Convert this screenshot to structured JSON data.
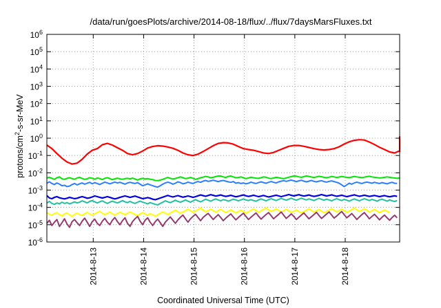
{
  "chart_data": {
    "type": "line",
    "title": "/data/run/goesPlots/archive/2014-08-18/flux/../flux/7daysMarsFluxes.txt",
    "xlabel": "Coordinated Universal Time (UTC)",
    "ylabel": {
      "prefix": "protons/cm",
      "sup": "2",
      "suffix": "-s-sr-MeV"
    },
    "yscale": "log",
    "ylim": [
      1e-06,
      1000000.0
    ],
    "xlim": [
      0,
      7
    ],
    "grid": "dotted",
    "legend": "none",
    "y_ticks": [
      {
        "value": -6,
        "base": "10",
        "exp": "-6"
      },
      {
        "value": -5,
        "base": "10",
        "exp": "-5"
      },
      {
        "value": -4,
        "base": "10",
        "exp": "-4"
      },
      {
        "value": -3,
        "base": "10",
        "exp": "-3"
      },
      {
        "value": -2,
        "base": "10",
        "exp": "-2"
      },
      {
        "value": -1,
        "base": "10",
        "exp": "-1"
      },
      {
        "value": 0,
        "base": "10",
        "exp": "0"
      },
      {
        "value": 1,
        "base": "10",
        "exp": "1"
      },
      {
        "value": 2,
        "base": "10",
        "exp": "2"
      },
      {
        "value": 3,
        "base": "10",
        "exp": "3"
      },
      {
        "value": 4,
        "base": "10",
        "exp": "4"
      },
      {
        "value": 5,
        "base": "10",
        "exp": "5"
      },
      {
        "value": 6,
        "base": "10",
        "exp": "6"
      }
    ],
    "x_ticks": [
      {
        "value": 0.92,
        "label": "2014-8-13"
      },
      {
        "value": 1.92,
        "label": "2014-8-14"
      },
      {
        "value": 2.92,
        "label": "2014-8-15"
      },
      {
        "value": 3.92,
        "label": "2014-8-16"
      },
      {
        "value": 4.92,
        "label": "2014-8-17"
      },
      {
        "value": 5.92,
        "label": "2014-8-18"
      }
    ],
    "series": [
      {
        "color": "#ff0000",
        "width": 2.2,
        "x_step": 0.1,
        "values": [
          0.4,
          0.25,
          0.13,
          0.07,
          0.042,
          0.032,
          0.036,
          0.06,
          0.12,
          0.2,
          0.25,
          0.42,
          0.5,
          0.4,
          0.28,
          0.2,
          0.13,
          0.11,
          0.13,
          0.18,
          0.27,
          0.33,
          0.37,
          0.35,
          0.31,
          0.26,
          0.2,
          0.14,
          0.11,
          0.1,
          0.12,
          0.17,
          0.25,
          0.37,
          0.5,
          0.55,
          0.53,
          0.45,
          0.33,
          0.25,
          0.22,
          0.2,
          0.17,
          0.14,
          0.13,
          0.15,
          0.2,
          0.26,
          0.34,
          0.38,
          0.38,
          0.34,
          0.29,
          0.25,
          0.22,
          0.21,
          0.22,
          0.25,
          0.32,
          0.46,
          0.62,
          0.75,
          0.82,
          0.78,
          0.6,
          0.43,
          0.3,
          0.22,
          0.16,
          0.14,
          0.19,
          0.38,
          0.68,
          1.0,
          1.2,
          1.15,
          0.95,
          0.7,
          0.45,
          0.28,
          0.19,
          0.17,
          0.23,
          0.35,
          0.5,
          0.65,
          0.8,
          0.95,
          0.85
        ]
      },
      {
        "color": "#00e700",
        "width": 2.0,
        "x_step": 0.05,
        "values": [
          0.005,
          0.0055,
          0.0048,
          0.0042,
          0.0052,
          0.0058,
          0.0045,
          0.0042,
          0.0048,
          0.0052,
          0.0046,
          0.0043,
          0.005,
          0.0055,
          0.0047,
          0.0042,
          0.0045,
          0.0052,
          0.0048,
          0.0043,
          0.005,
          0.0046,
          0.0041,
          0.0048,
          0.0052,
          0.0046,
          0.004,
          0.0045,
          0.0049,
          0.0044,
          0.0042,
          0.0046,
          0.0048,
          0.0045,
          0.0049,
          0.0044,
          0.0038,
          0.0045,
          0.0048,
          0.0044,
          0.0046,
          0.0043,
          0.004,
          0.0036,
          0.0035,
          0.0038,
          0.0042,
          0.0048,
          0.0054,
          0.0048,
          0.0044,
          0.0047,
          0.0052,
          0.0058,
          0.0052,
          0.0046,
          0.0049,
          0.0054,
          0.0048,
          0.0042,
          0.0046,
          0.0052,
          0.0056,
          0.0062,
          0.0058,
          0.0052,
          0.0055,
          0.006,
          0.0066,
          0.0065,
          0.0058,
          0.0054,
          0.0062,
          0.0066,
          0.0058,
          0.0052,
          0.0054,
          0.0058,
          0.0052,
          0.0046,
          0.005,
          0.0056,
          0.0052,
          0.0049,
          0.0048,
          0.0052,
          0.0058,
          0.0055,
          0.0049,
          0.0046,
          0.005,
          0.0055,
          0.0052,
          0.0048,
          0.0046,
          0.005,
          0.0056,
          0.006,
          0.0066,
          0.0064,
          0.0058,
          0.0055,
          0.006,
          0.0066,
          0.0062,
          0.0057,
          0.0054,
          0.0058,
          0.0063,
          0.0059,
          0.0055,
          0.0052,
          0.0056,
          0.0062,
          0.0058,
          0.0054,
          0.0057,
          0.0062,
          0.0058,
          0.0055,
          0.0053,
          0.0057,
          0.0062,
          0.0058,
          0.0055,
          0.0053,
          0.0056,
          0.006,
          0.0063,
          0.0058,
          0.0055,
          0.0053,
          0.005,
          0.0052,
          0.0055,
          0.0058,
          0.0055,
          0.0052,
          0.005,
          0.0048,
          0.005
        ]
      },
      {
        "color": "#2a7fff",
        "width": 2.0,
        "x_step": 0.05,
        "values": [
          0.0025,
          0.003,
          0.0024,
          0.0021,
          0.0026,
          0.0022,
          0.0018,
          0.0019,
          0.0016,
          0.0017,
          0.0021,
          0.0024,
          0.002,
          0.0023,
          0.0026,
          0.0022,
          0.0025,
          0.0028,
          0.0023,
          0.0027,
          0.0024,
          0.0021,
          0.0025,
          0.0029,
          0.0026,
          0.0023,
          0.0026,
          0.0029,
          0.0026,
          0.0028,
          0.0025,
          0.0022,
          0.0026,
          0.0028,
          0.0026,
          0.0024,
          0.0027,
          0.0022,
          0.0018,
          0.002,
          0.0023,
          0.002,
          0.0018,
          0.0016,
          0.0015,
          0.0018,
          0.0022,
          0.0026,
          0.0029,
          0.0026,
          0.0022,
          0.0025,
          0.003,
          0.0027,
          0.0023,
          0.0025,
          0.0029,
          0.0026,
          0.0024,
          0.0028,
          0.0031,
          0.0028,
          0.0033,
          0.0036,
          0.0032,
          0.0034,
          0.0037,
          0.0034,
          0.0031,
          0.0034,
          0.0036,
          0.0033,
          0.003,
          0.0028,
          0.0031,
          0.0025,
          0.0027,
          0.0024,
          0.0026,
          0.0023,
          0.0025,
          0.0029,
          0.0026,
          0.0024,
          0.0027,
          0.003,
          0.0027,
          0.0025,
          0.0028,
          0.0031,
          0.0028,
          0.0026,
          0.003,
          0.0033,
          0.0035,
          0.0032,
          0.0035,
          0.0038,
          0.0034,
          0.0031,
          0.0034,
          0.0037,
          0.0033,
          0.003,
          0.0033,
          0.0036,
          0.0032,
          0.003,
          0.0033,
          0.0035,
          0.0031,
          0.0029,
          0.0032,
          0.0034,
          0.0031,
          0.0028,
          0.0025,
          0.002,
          0.0016,
          0.002,
          0.0025,
          0.0022,
          0.0026,
          0.0029,
          0.0026,
          0.0024,
          0.0027,
          0.0029,
          0.0027,
          0.0025,
          0.0028,
          0.0026,
          0.0024,
          0.0027,
          0.0025,
          0.0023,
          0.0026,
          0.0028,
          0.0025,
          0.0024
        ]
      },
      {
        "color": "#0000e0",
        "width": 2.2,
        "x_step": 0.05,
        "values": [
          0.00048,
          0.00035,
          0.00032,
          0.00038,
          0.00042,
          0.00036,
          0.00033,
          0.00031,
          0.00034,
          0.00038,
          0.00035,
          0.00032,
          0.00034,
          0.00038,
          0.00042,
          0.00038,
          0.00034,
          0.00036,
          0.0004,
          0.00046,
          0.00042,
          0.00038,
          0.00035,
          0.00038,
          0.00042,
          0.00038,
          0.00034,
          0.00031,
          0.00034,
          0.00038,
          0.00042,
          0.00046,
          0.00042,
          0.00038,
          0.00041,
          0.00045,
          0.0004,
          0.00036,
          0.00032,
          0.00034,
          0.00037,
          0.00034,
          0.0003,
          0.00028,
          0.00031,
          0.00035,
          0.00039,
          0.00044,
          0.00049,
          0.00044,
          0.0004,
          0.00044,
          0.00048,
          0.00043,
          0.00039,
          0.00042,
          0.00046,
          0.00042,
          0.00038,
          0.00042,
          0.00047,
          0.00052,
          0.00048,
          0.00044,
          0.00049,
          0.00054,
          0.0005,
          0.00045,
          0.00048,
          0.00052,
          0.00047,
          0.00043,
          0.00046,
          0.0005,
          0.00045,
          0.00041,
          0.00044,
          0.00048,
          0.00052,
          0.00047,
          0.00043,
          0.00046,
          0.00051,
          0.00046,
          0.00042,
          0.00045,
          0.00049,
          0.00044,
          0.0004,
          0.00043,
          0.00047,
          0.00051,
          0.00046,
          0.00042,
          0.00046,
          0.0005,
          0.00055,
          0.0005,
          0.00046,
          0.0005,
          0.00054,
          0.00049,
          0.00045,
          0.00048,
          0.00052,
          0.00047,
          0.00043,
          0.00046,
          0.0005,
          0.00055,
          0.0005,
          0.00046,
          0.00049,
          0.00053,
          0.00048,
          0.00044,
          0.00047,
          0.00051,
          0.00046,
          0.00042,
          0.00045,
          0.00049,
          0.00053,
          0.00048,
          0.00044,
          0.00047,
          0.00051,
          0.00047,
          0.00043,
          0.00046,
          0.00049,
          0.00045,
          0.00042,
          0.00045,
          0.00048,
          0.00044,
          0.00041,
          0.00044,
          0.00047,
          0.00043
        ]
      },
      {
        "color": "#20c0a0",
        "width": 2.0,
        "x_step": 0.05,
        "values": [
          0.00018,
          0.00022,
          0.00017,
          0.00015,
          0.00018,
          0.00016,
          0.0002,
          0.00017,
          0.00019,
          0.00016,
          0.00018,
          0.00021,
          0.00018,
          0.0002,
          0.00024,
          0.00021,
          0.00018,
          0.00022,
          0.00025,
          0.00021,
          0.00018,
          0.00021,
          0.00024,
          0.0002,
          0.00017,
          0.0002,
          0.00023,
          0.0002,
          0.00018,
          0.00021,
          0.00025,
          0.00021,
          0.00019,
          0.00022,
          0.00019,
          0.00017,
          0.0002,
          0.00023,
          0.0002,
          0.00018,
          0.00016,
          0.00019,
          0.00017,
          0.00015,
          0.00014,
          0.00017,
          0.0002,
          0.00024,
          0.00021,
          0.00019,
          0.00022,
          0.00026,
          0.00022,
          0.0002,
          0.00023,
          0.00027,
          0.00023,
          0.0002,
          0.00024,
          0.00028,
          0.00024,
          0.00021,
          0.00025,
          0.0003,
          0.00026,
          0.00023,
          0.00027,
          0.00031,
          0.00027,
          0.00024,
          0.00028,
          0.00026,
          0.00023,
          0.00026,
          0.0003,
          0.00027,
          0.00024,
          0.00027,
          0.00031,
          0.00027,
          0.00025,
          0.00028,
          0.00025,
          0.00023,
          0.00027,
          0.00031,
          0.00027,
          0.00024,
          0.00028,
          0.00032,
          0.00028,
          0.00025,
          0.00029,
          0.00033,
          0.00029,
          0.00026,
          0.0003,
          0.00034,
          0.00029,
          0.00026,
          0.0003,
          0.00034,
          0.0003,
          0.00027,
          0.00031,
          0.00028,
          0.00025,
          0.00029,
          0.00033,
          0.00029,
          0.00026,
          0.0003,
          0.00027,
          0.00024,
          0.00028,
          0.00032,
          0.00028,
          0.00025,
          0.00029,
          0.00026,
          0.00023,
          0.00027,
          0.00031,
          0.00027,
          0.00024,
          0.00028,
          0.00032,
          0.00028,
          0.00025,
          0.00029,
          0.00026,
          0.00023,
          0.00027,
          0.0003,
          0.00026,
          0.00023,
          0.00027,
          0.00024,
          0.00022,
          0.00025
        ]
      },
      {
        "color": "#ffff00",
        "width": 2.0,
        "x_step": 0.05,
        "values": [
          5e-05,
          4e-05,
          3.5e-05,
          4.5e-05,
          5e-05,
          3.8e-05,
          3.2e-05,
          4.2e-05,
          4.8e-05,
          3.6e-05,
          3e-05,
          4e-05,
          4.6e-05,
          3.9e-05,
          3.4e-05,
          4.4e-05,
          5.2e-05,
          4.1e-05,
          3.5e-05,
          4.3e-05,
          5e-05,
          6e-05,
          4.6e-05,
          3.8e-05,
          4.5e-05,
          5.4e-05,
          4.2e-05,
          3.6e-05,
          4.4e-05,
          5.2e-05,
          4.5e-05,
          3.8e-05,
          4.6e-05,
          5.5e-05,
          4.6e-05,
          3.9e-05,
          3.3e-05,
          4.2e-05,
          5e-05,
          4.1e-05,
          3.5e-05,
          4.4e-05,
          3.7e-05,
          3.1e-05,
          3.8e-05,
          4.6e-05,
          5.5e-05,
          4.6e-05,
          3.9e-05,
          4.8e-05,
          5.8e-05,
          7e-05,
          5.6e-05,
          4.6e-05,
          5.4e-05,
          6.5e-05,
          8e-05,
          6.4e-05,
          5.2e-05,
          6.2e-05,
          7.6e-05,
          9e-05,
          7e-05,
          5.6e-05,
          6.6e-05,
          8e-05,
          6.5e-05,
          5.3e-05,
          6.4e-05,
          7.8e-05,
          6.2e-05,
          5e-05,
          6e-05,
          7.3e-05,
          5.8e-05,
          4.8e-05,
          5.8e-05,
          7e-05,
          5.6e-05,
          4.6e-05,
          5.6e-05,
          6.8e-05,
          8.2e-05,
          6.5e-05,
          5.3e-05,
          6.4e-05,
          7.8e-05,
          9.2e-05,
          7.2e-05,
          5.8e-05,
          6.8e-05,
          8.2e-05,
          6.6e-05,
          5.4e-05,
          6.5e-05,
          7.8e-05,
          6.2e-05,
          5e-05,
          6e-05,
          7.2e-05,
          5.8e-05,
          4.8e-05,
          5.8e-05,
          7e-05,
          8.4e-05,
          6.6e-05,
          5.4e-05,
          6.4e-05,
          7.6e-05,
          6e-05,
          4.9e-05,
          5.8e-05,
          7e-05,
          8.5e-05,
          6.8e-05,
          5.5e-05,
          6.6e-05,
          8e-05,
          6.4e-05,
          5.2e-05,
          6.2e-05,
          7.5e-05,
          9e-05,
          7.2e-05,
          5.8e-05,
          7e-05,
          8.4e-05,
          6.7e-05,
          5.4e-05,
          6.4e-05,
          7.8e-05,
          6.2e-05,
          5e-05,
          6e-05,
          7.2e-05,
          6e-05,
          5e-05
        ]
      },
      {
        "color": "#943a6e",
        "width": 2.0,
        "x_step": 0.05,
        "values": [
          1.2e-05,
          1.8e-05,
          9e-06,
          1.4e-05,
          2e-05,
          8e-06,
          1.3e-05,
          2.2e-05,
          1.1e-05,
          7e-06,
          1.5e-05,
          2e-05,
          1.3e-05,
          9e-06,
          1.6e-05,
          2.4e-05,
          1.4e-05,
          8e-06,
          1.5e-05,
          2.1e-05,
          1.2e-05,
          9e-06,
          1.6e-05,
          2.3e-05,
          1.4e-05,
          1e-05,
          1.8e-05,
          2.6e-05,
          1.5e-05,
          1e-05,
          1.7e-05,
          2.5e-05,
          1.2e-05,
          8e-06,
          1.5e-05,
          2.2e-05,
          3e-05,
          1.6e-05,
          1e-05,
          1.8e-05,
          2.5e-05,
          1.4e-05,
          9e-06,
          1.5e-05,
          2.1e-05,
          1.3e-05,
          8e-06,
          1.4e-05,
          2e-05,
          2.8e-05,
          1.8e-05,
          1.2e-05,
          1.9e-05,
          2.7e-05,
          3.6e-05,
          2.2e-05,
          1.4e-05,
          2.2e-05,
          3e-05,
          4e-05,
          2.6e-05,
          1.7e-05,
          2.6e-05,
          3.5e-05,
          4.5e-05,
          3e-05,
          2e-05,
          2.8e-05,
          3.8e-05,
          2.6e-05,
          1.7e-05,
          2.4e-05,
          3.2e-05,
          4.2e-05,
          2.8e-05,
          1.9e-05,
          2.6e-05,
          3.5e-05,
          4.6e-05,
          3e-05,
          2e-05,
          2.7e-05,
          3.6e-05,
          4.8e-05,
          3.1e-05,
          2.1e-05,
          2.9e-05,
          3.9e-05,
          5e-05,
          3.3e-05,
          2.2e-05,
          3e-05,
          4e-05,
          5.4e-05,
          3.5e-05,
          2.3e-05,
          3.1e-05,
          4.2e-05,
          3e-05,
          2e-05,
          2.7e-05,
          3.6e-05,
          4.8e-05,
          3.2e-05,
          2.2e-05,
          2.9e-05,
          3.9e-05,
          5.2e-05,
          3.4e-05,
          2.3e-05,
          3.1e-05,
          4.1e-05,
          5.5e-05,
          3.6e-05,
          2.4e-05,
          3.2e-05,
          4.3e-05,
          5.8e-05,
          3.8e-05,
          2.5e-05,
          3.3e-05,
          4.4e-05,
          3e-05,
          2e-05,
          2.8e-05,
          3.8e-05,
          5e-05,
          3.3e-05,
          2.2e-05,
          3e-05,
          4e-05,
          2.8e-05,
          1.9e-05,
          2.7e-05,
          3.6e-05,
          2.5e-05,
          1.8e-05,
          2.6e-05,
          3.5e-05,
          2.5e-05
        ]
      }
    ]
  }
}
